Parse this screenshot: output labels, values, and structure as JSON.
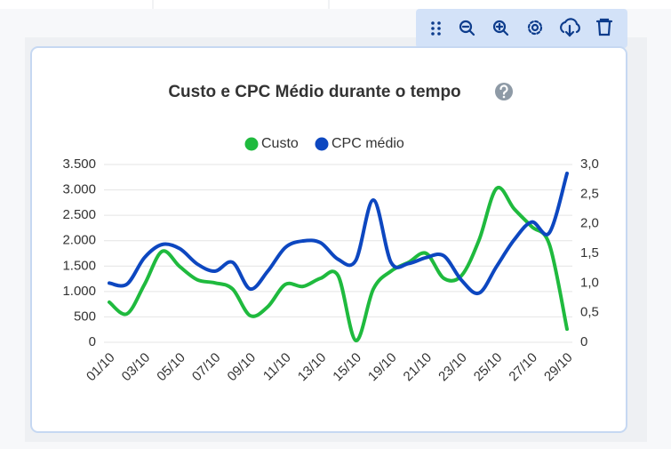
{
  "chart_data": {
    "type": "line",
    "title": "Custo e CPC Médio durante o tempo",
    "categories": [
      "01/10",
      null,
      "03/10",
      null,
      "05/10",
      null,
      "07/10",
      null,
      "09/10",
      null,
      "11/10",
      null,
      "13/10",
      null,
      "15/10",
      null,
      "19/10",
      null,
      "21/10",
      null,
      "23/10",
      null,
      "25/10",
      null,
      "27/10",
      null,
      "29/10"
    ],
    "series": [
      {
        "name": "Custo",
        "color": "#1fba3e",
        "values": [
          790,
          560,
          1140,
          1790,
          1490,
          1230,
          1170,
          1050,
          525,
          700,
          1140,
          1100,
          1260,
          1310,
          35,
          1050,
          1400,
          1575,
          1750,
          1260,
          1310,
          2010,
          3030,
          2625,
          2275,
          1925,
          260
        ]
      },
      {
        "name": "CPC médio",
        "color": "#0d47c0",
        "axis": "y2",
        "values": [
          1.0,
          0.98,
          1.43,
          1.65,
          1.58,
          1.32,
          1.2,
          1.35,
          0.9,
          1.2,
          1.6,
          1.71,
          1.68,
          1.4,
          1.38,
          2.4,
          1.35,
          1.33,
          1.43,
          1.46,
          1.05,
          0.83,
          1.28,
          1.73,
          2.03,
          1.85,
          2.85
        ]
      }
    ],
    "ylim": [
      0,
      3500
    ],
    "yticks": [
      0,
      500,
      {
        "value": 1000,
        "label": "1.000"
      },
      {
        "value": 1500,
        "label": "1.500"
      },
      {
        "value": 2000,
        "label": "2.000"
      },
      {
        "value": 2500,
        "label": "2.500"
      },
      {
        "value": 3000,
        "label": "3.000"
      },
      {
        "value": 3500,
        "label": "3.500"
      }
    ],
    "y2lim": [
      0,
      3
    ],
    "y2ticks": [
      0,
      {
        "value": 0.5,
        "label": "0,5"
      },
      {
        "value": 1,
        "label": "1,0"
      },
      {
        "value": 1.5,
        "label": "1,5"
      },
      {
        "value": 2,
        "label": "2,0"
      },
      {
        "value": 2.5,
        "label": "2,5"
      },
      {
        "value": 3,
        "label": "3,0"
      }
    ],
    "grid": true,
    "legend": "top"
  }
}
